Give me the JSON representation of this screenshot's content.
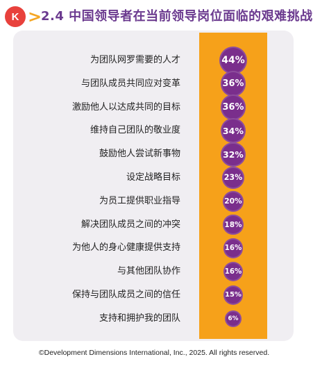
{
  "header": {
    "logo_text": "K",
    "chevron": ">",
    "title": "2.4 中国领导者在当前领导岗位面临的艰难挑战"
  },
  "colors": {
    "accent_orange": "#f6a11a",
    "bubble_purple": "#7a2e8c",
    "title_purple": "#6b3a8f",
    "logo_red": "#e8413c"
  },
  "chart_data": {
    "type": "bar",
    "title": "",
    "xlabel": "",
    "ylabel": "",
    "categories": [
      "为团队网罗需要的人才",
      "与团队成员共同应对变革",
      "激励他人以达成共同的目标",
      "维持自己团队的敬业度",
      "鼓励他人尝试新事物",
      "设定战略目标",
      "为员工提供职业指导",
      "解决团队成员之间的冲突",
      "为他人的身心健康提供支持",
      "与其他团队协作",
      "保持与团队成员之间的信任",
      "支持和拥护我的团队"
    ],
    "values": [
      44,
      36,
      36,
      34,
      32,
      23,
      20,
      18,
      16,
      16,
      15,
      6
    ],
    "value_labels": [
      "44%",
      "36%",
      "36%",
      "34%",
      "32%",
      "23%",
      "20%",
      "18%",
      "16%",
      "16%",
      "15%",
      "6%"
    ]
  },
  "footer": {
    "copyright": "©Development Dimensions International, Inc., 2025. All rights reserved."
  }
}
